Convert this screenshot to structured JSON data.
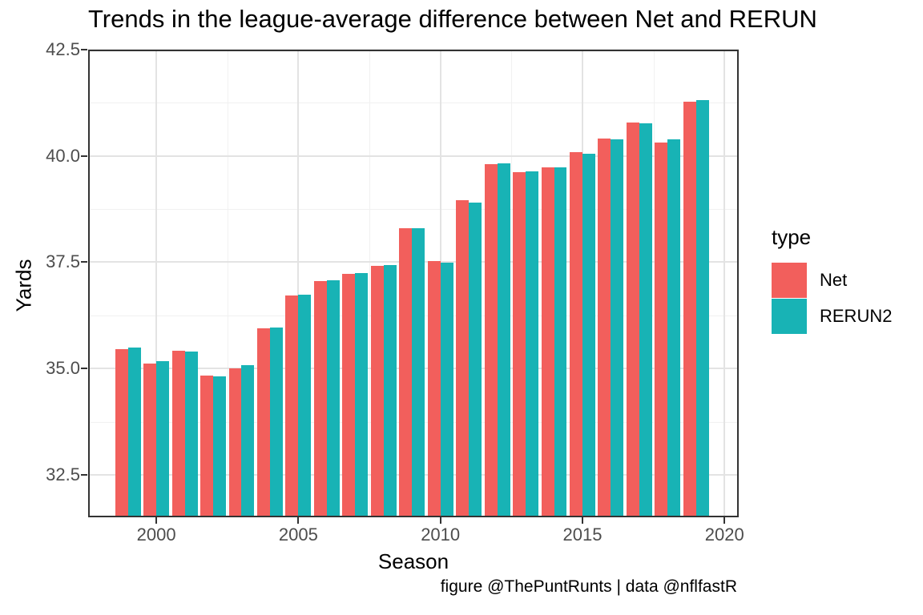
{
  "chart_data": {
    "type": "bar",
    "title": "Trends in the league-average difference between Net and RERUN",
    "xlabel": "Season",
    "ylabel": "Yards",
    "caption": "figure @ThePuntRunts | data @nflfastR",
    "legend_title": "type",
    "legend_position": "right",
    "grid": true,
    "categories": [
      1999,
      2000,
      2001,
      2002,
      2003,
      2004,
      2005,
      2006,
      2007,
      2008,
      2009,
      2010,
      2011,
      2012,
      2013,
      2014,
      2015,
      2016,
      2017,
      2018,
      2019
    ],
    "series": [
      {
        "name": "Net",
        "color": "#F25F5C",
        "values": [
          35.45,
          35.12,
          35.42,
          34.83,
          35.01,
          35.95,
          36.72,
          37.05,
          37.22,
          37.42,
          38.3,
          37.52,
          38.95,
          39.8,
          39.61,
          39.73,
          40.08,
          40.41,
          40.78,
          40.31,
          41.27
        ]
      },
      {
        "name": "RERUN2",
        "color": "#18B3B5",
        "values": [
          35.49,
          35.17,
          35.4,
          34.82,
          35.07,
          35.97,
          36.74,
          37.07,
          37.25,
          37.44,
          38.3,
          37.49,
          38.91,
          39.82,
          39.64,
          39.74,
          40.06,
          40.4,
          40.76,
          40.4,
          41.32
        ]
      }
    ],
    "xlim": [
      1997.6,
      2020.5
    ],
    "ylim": [
      31.5,
      42.5
    ],
    "x_ticks": {
      "values": [
        2000,
        2005,
        2010,
        2015,
        2020
      ],
      "labels": [
        "2000",
        "2005",
        "2010",
        "2015",
        "2020"
      ]
    },
    "y_ticks": {
      "values": [
        32.5,
        35.0,
        37.5,
        40.0,
        42.5
      ],
      "labels": [
        "32.5",
        "35.0",
        "37.5",
        "40.0",
        "42.5"
      ]
    },
    "x_minor_gridlines": [
      2002.5,
      2007.5,
      2012.5,
      2017.5
    ],
    "y_minor_gridlines": [
      33.75,
      36.25,
      38.75,
      41.25
    ],
    "bar_width_years": 0.45
  }
}
